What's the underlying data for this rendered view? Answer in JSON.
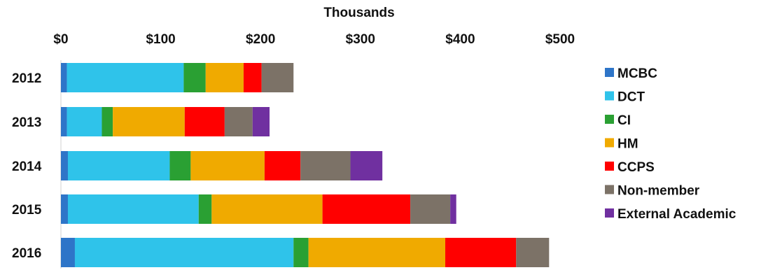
{
  "chart_data": {
    "type": "bar",
    "orientation": "horizontal",
    "stacked": true,
    "title": "Thousands",
    "categories": [
      "2012",
      "2013",
      "2014",
      "2015",
      "2016"
    ],
    "xlim": [
      0,
      500
    ],
    "x_ticks": [
      0,
      100,
      200,
      300,
      400,
      500
    ],
    "x_tick_labels": [
      "$0",
      "$100",
      "$200",
      "$300",
      "$400",
      "$500"
    ],
    "grid": false,
    "legend_position": "right",
    "series": [
      {
        "name": "MCBC",
        "color": "#2e75c8",
        "values": [
          6,
          6,
          7,
          7,
          14
        ]
      },
      {
        "name": "DCT",
        "color": "#2fc3ea",
        "values": [
          117,
          35,
          102,
          131,
          219
        ]
      },
      {
        "name": "CI",
        "color": "#2aa033",
        "values": [
          22,
          11,
          21,
          13,
          15
        ]
      },
      {
        "name": "HM",
        "color": "#f0aa00",
        "values": [
          38,
          72,
          74,
          111,
          137
        ]
      },
      {
        "name": "CCPS",
        "color": "#ff0000",
        "values": [
          18,
          40,
          36,
          88,
          71
        ]
      },
      {
        "name": "Non-member",
        "color": "#7c7267",
        "values": [
          32,
          28,
          50,
          40,
          33
        ]
      },
      {
        "name": "External Academic",
        "color": "#7030a0",
        "values": [
          0,
          17,
          32,
          6,
          0
        ]
      }
    ]
  }
}
